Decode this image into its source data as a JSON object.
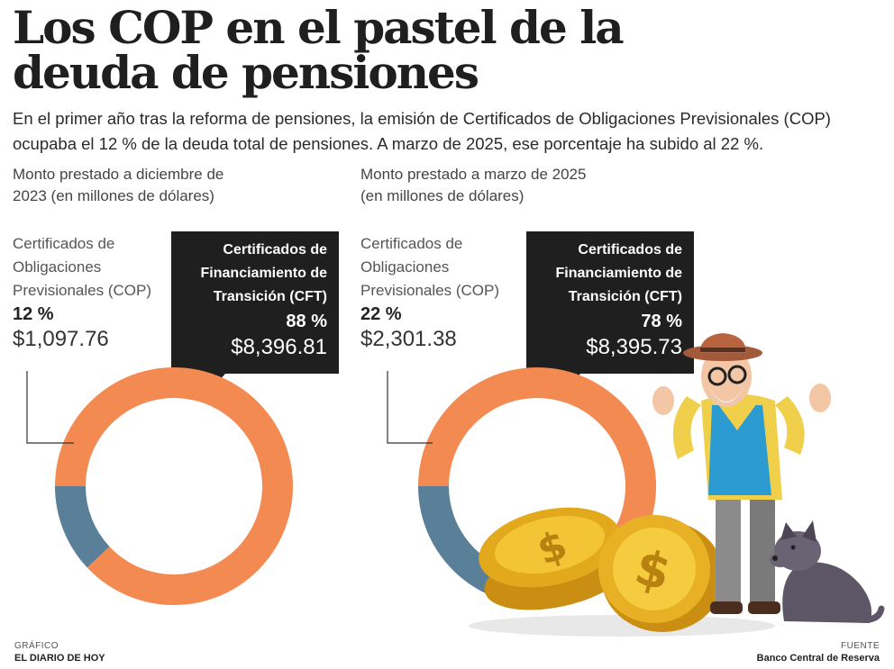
{
  "title": "Los COP en el pastel de la deuda de pensiones",
  "subtitle": "En el primer año tras la reforma de pensiones, la emisión de Certificados de Obligaciones Previsionales (COP) ocupaba el 12 % de la deuda total de pensiones. A marzo de 2025, ese porcentaje ha subido al 22 %.",
  "footer": {
    "credit_label": "GRÁFICO",
    "credit": "EL DIARIO DE HOY",
    "source_label": "FUENTE",
    "source": "Banco Central de Reserva"
  },
  "colors": {
    "cop": "#5a7f99",
    "cft": "#f28a52",
    "callout": "#1f1f1f"
  },
  "chart_data": [
    {
      "type": "pie",
      "title": "Monto prestado a diciembre de 2023 (en millones de dólares)",
      "series": [
        {
          "name": "Certificados de Obligaciones Previsionales (COP)",
          "percent_label": "12 %",
          "value_label": "$1,097.76",
          "value": 1097.76,
          "percent": 12
        },
        {
          "name": "Certificados de Financiamiento de Transición (CFT)",
          "percent_label": "88 %",
          "value_label": "$8,396.81",
          "value": 8396.81,
          "percent": 88
        }
      ]
    },
    {
      "type": "pie",
      "title": "Monto prestado a marzo de 2025 (en millones de dólares)",
      "series": [
        {
          "name": "Certificados de Obligaciones Previsionales (COP)",
          "percent_label": "22 %",
          "value_label": "$2,301.38",
          "value": 2301.38,
          "percent": 22
        },
        {
          "name": "Certificados de Financiamiento de Transición (CFT)",
          "percent_label": "78 %",
          "value_label": "$8,395.73",
          "value": 8395.73,
          "percent": 78
        }
      ]
    }
  ]
}
